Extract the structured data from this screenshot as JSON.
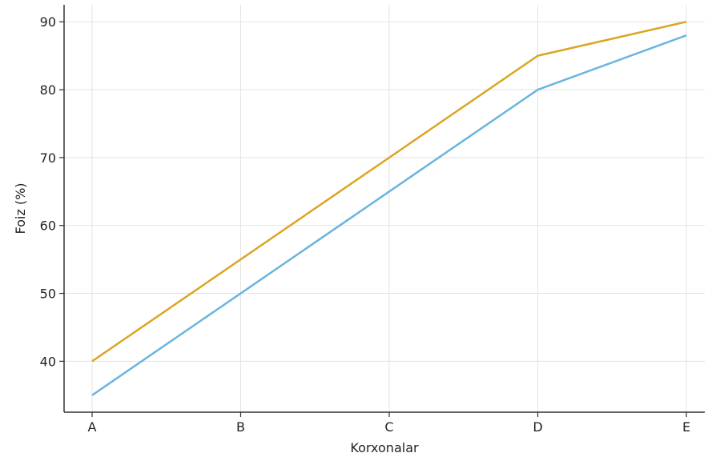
{
  "chart_data": {
    "type": "line",
    "xlabel": "Korxonalar",
    "ylabel": "Foiz (%)",
    "categories": [
      "A",
      "B",
      "C",
      "D",
      "E"
    ],
    "series": [
      {
        "values": [
          40,
          55,
          70,
          85,
          90
        ],
        "color": "#dba520"
      },
      {
        "values": [
          35,
          50,
          65,
          80,
          88
        ],
        "color": "#6cb4e0"
      }
    ],
    "ylim": [
      32.5,
      92.5
    ],
    "yticks": [
      40,
      50,
      60,
      70,
      80,
      90
    ],
    "grid": true
  }
}
